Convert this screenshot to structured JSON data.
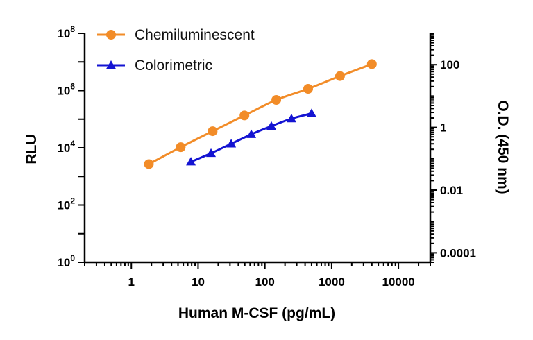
{
  "chart_data": {
    "type": "line",
    "x_axis": {
      "label": "Human M-CSF (pg/mL)",
      "scale": "log",
      "range": [
        0.2,
        30000
      ],
      "ticks": [
        1,
        10,
        100,
        1000,
        10000
      ],
      "tick_labels": [
        "1",
        "10",
        "100",
        "1000",
        "10000"
      ]
    },
    "y_axis_left": {
      "label": "RLU",
      "scale": "log",
      "range": [
        1,
        100000000
      ],
      "ticks": [
        1,
        100,
        10000,
        1000000,
        100000000
      ],
      "tick_labels": [
        {
          "base": "10",
          "exp": "0"
        },
        {
          "base": "10",
          "exp": "2"
        },
        {
          "base": "10",
          "exp": "4"
        },
        {
          "base": "10",
          "exp": "6"
        },
        {
          "base": "10",
          "exp": "8"
        }
      ]
    },
    "y_axis_right": {
      "label": "O.D. (450 nm)",
      "scale": "log",
      "range": [
        5e-05,
        1000
      ],
      "ticks": [
        0.0001,
        0.01,
        1,
        100
      ],
      "tick_labels": [
        "0.0001",
        "0.01",
        "1",
        "100"
      ]
    },
    "series": [
      {
        "name": "Chemiluminescent",
        "axis": "left",
        "color": "#F28C28",
        "marker": "circle",
        "x": [
          1.83,
          5.49,
          16.5,
          49.4,
          148,
          444,
          1333,
          4000
        ],
        "y": [
          2700,
          10500,
          38000,
          135000,
          470000,
          1150000,
          3200000,
          8400000
        ]
      },
      {
        "name": "Colorimetric",
        "axis": "right",
        "color": "#1414D2",
        "marker": "triangle",
        "x": [
          7.8,
          15.6,
          31.3,
          62.5,
          125,
          250,
          500
        ],
        "y": [
          0.08,
          0.15,
          0.3,
          0.6,
          1.1,
          1.9,
          2.8
        ]
      }
    ],
    "legend": {
      "position": "top-left",
      "entries": [
        "Chemiluminescent",
        "Colorimetric"
      ]
    },
    "grid": false
  }
}
